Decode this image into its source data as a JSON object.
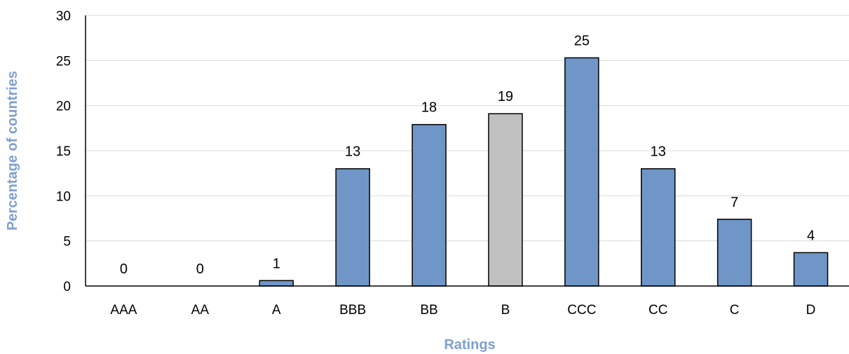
{
  "chart_data": {
    "type": "bar",
    "title": "",
    "xlabel": "Ratings",
    "ylabel": "Percentage of countries",
    "categories": [
      "AAA",
      "AA",
      "A",
      "BBB",
      "BB",
      "B",
      "CCC",
      "CC",
      "C",
      "D"
    ],
    "values": [
      0,
      0,
      0.6,
      13,
      17.9,
      19.1,
      25.3,
      13,
      7.4,
      3.7
    ],
    "data_labels": [
      "0",
      "0",
      "1",
      "13",
      "18",
      "19",
      "25",
      "13",
      "7",
      "4"
    ],
    "highlight_category": "B",
    "yticks": [
      0,
      5,
      10,
      15,
      20,
      25,
      30
    ],
    "ylim": [
      0,
      30
    ],
    "grid": true,
    "legend": "none",
    "colors": {
      "bar": "#6f96c6",
      "highlight": "#c0c0c0",
      "axis_title": "#7f9fcf",
      "grid": "#d9d9d9"
    }
  }
}
